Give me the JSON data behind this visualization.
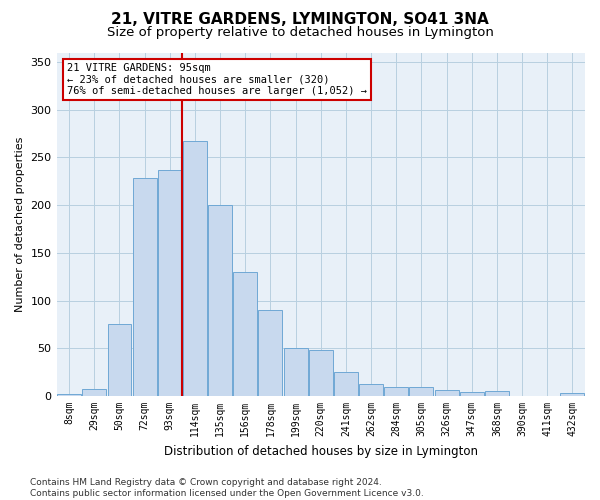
{
  "title": "21, VITRE GARDENS, LYMINGTON, SO41 3NA",
  "subtitle": "Size of property relative to detached houses in Lymington",
  "xlabel": "Distribution of detached houses by size in Lymington",
  "ylabel": "Number of detached properties",
  "bar_color": "#c8d9ee",
  "bar_edge_color": "#6fa8d5",
  "background_color": "#ffffff",
  "plot_bg_color": "#e8f0f8",
  "grid_color": "#b8cfe0",
  "annotation_box_color": "#cc0000",
  "annotation_line1": "21 VITRE GARDENS: 95sqm",
  "annotation_line2": "← 23% of detached houses are smaller (320)",
  "annotation_line3": "76% of semi-detached houses are larger (1,052) →",
  "vline_color": "#cc0000",
  "vline_bar_index": 4,
  "categories": [
    "8sqm",
    "29sqm",
    "50sqm",
    "72sqm",
    "93sqm",
    "114sqm",
    "135sqm",
    "156sqm",
    "178sqm",
    "199sqm",
    "220sqm",
    "241sqm",
    "262sqm",
    "284sqm",
    "305sqm",
    "326sqm",
    "347sqm",
    "368sqm",
    "390sqm",
    "411sqm",
    "432sqm"
  ],
  "values": [
    2,
    7,
    75,
    228,
    237,
    267,
    200,
    130,
    90,
    50,
    48,
    25,
    13,
    9,
    9,
    6,
    4,
    5,
    0,
    0,
    3
  ],
  "ylim": [
    0,
    360
  ],
  "yticks": [
    0,
    50,
    100,
    150,
    200,
    250,
    300,
    350
  ],
  "footer": "Contains HM Land Registry data © Crown copyright and database right 2024.\nContains public sector information licensed under the Open Government Licence v3.0.",
  "title_fontsize": 11,
  "subtitle_fontsize": 9.5,
  "xlabel_fontsize": 8.5,
  "ylabel_fontsize": 8,
  "tick_fontsize": 7,
  "footer_fontsize": 6.5
}
